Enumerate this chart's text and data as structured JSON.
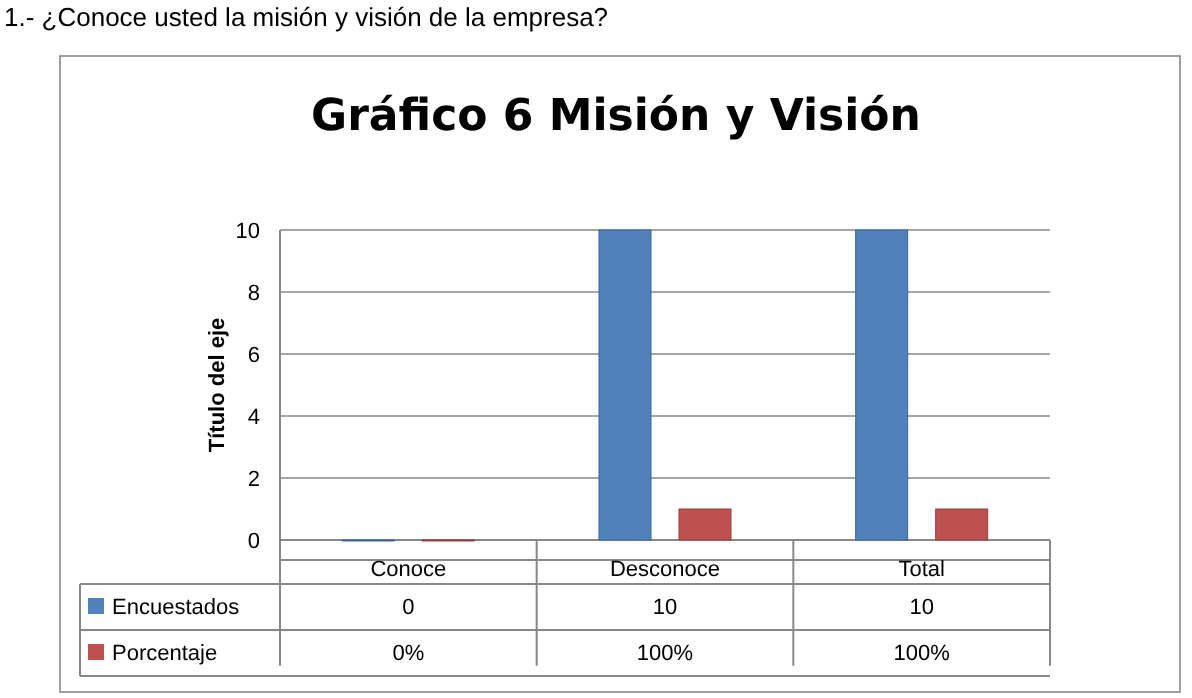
{
  "chart_data": {
    "type": "bar",
    "title": "Gráfico 6 Misión y Visión",
    "ylabel": "Título del eje",
    "annotations": [
      "1.- ¿Conoce usted la misión y visión de la empresa?"
    ],
    "categories": [
      "Conoce",
      "Desconoce",
      "Total"
    ],
    "series": [
      {
        "name": "Encuestados",
        "color": "#4f81bd",
        "values": [
          0,
          10,
          10
        ],
        "value_labels": [
          "0",
          "10",
          "10"
        ]
      },
      {
        "name": "Porcentaje",
        "color": "#c0504d",
        "values": [
          0,
          1,
          1
        ],
        "value_labels": [
          "0%",
          "100%",
          "100%"
        ]
      }
    ],
    "ylim": [
      0,
      10
    ],
    "yticks": [
      0,
      2,
      4,
      6,
      8,
      10
    ],
    "grid": "y",
    "legend": "bottom"
  }
}
